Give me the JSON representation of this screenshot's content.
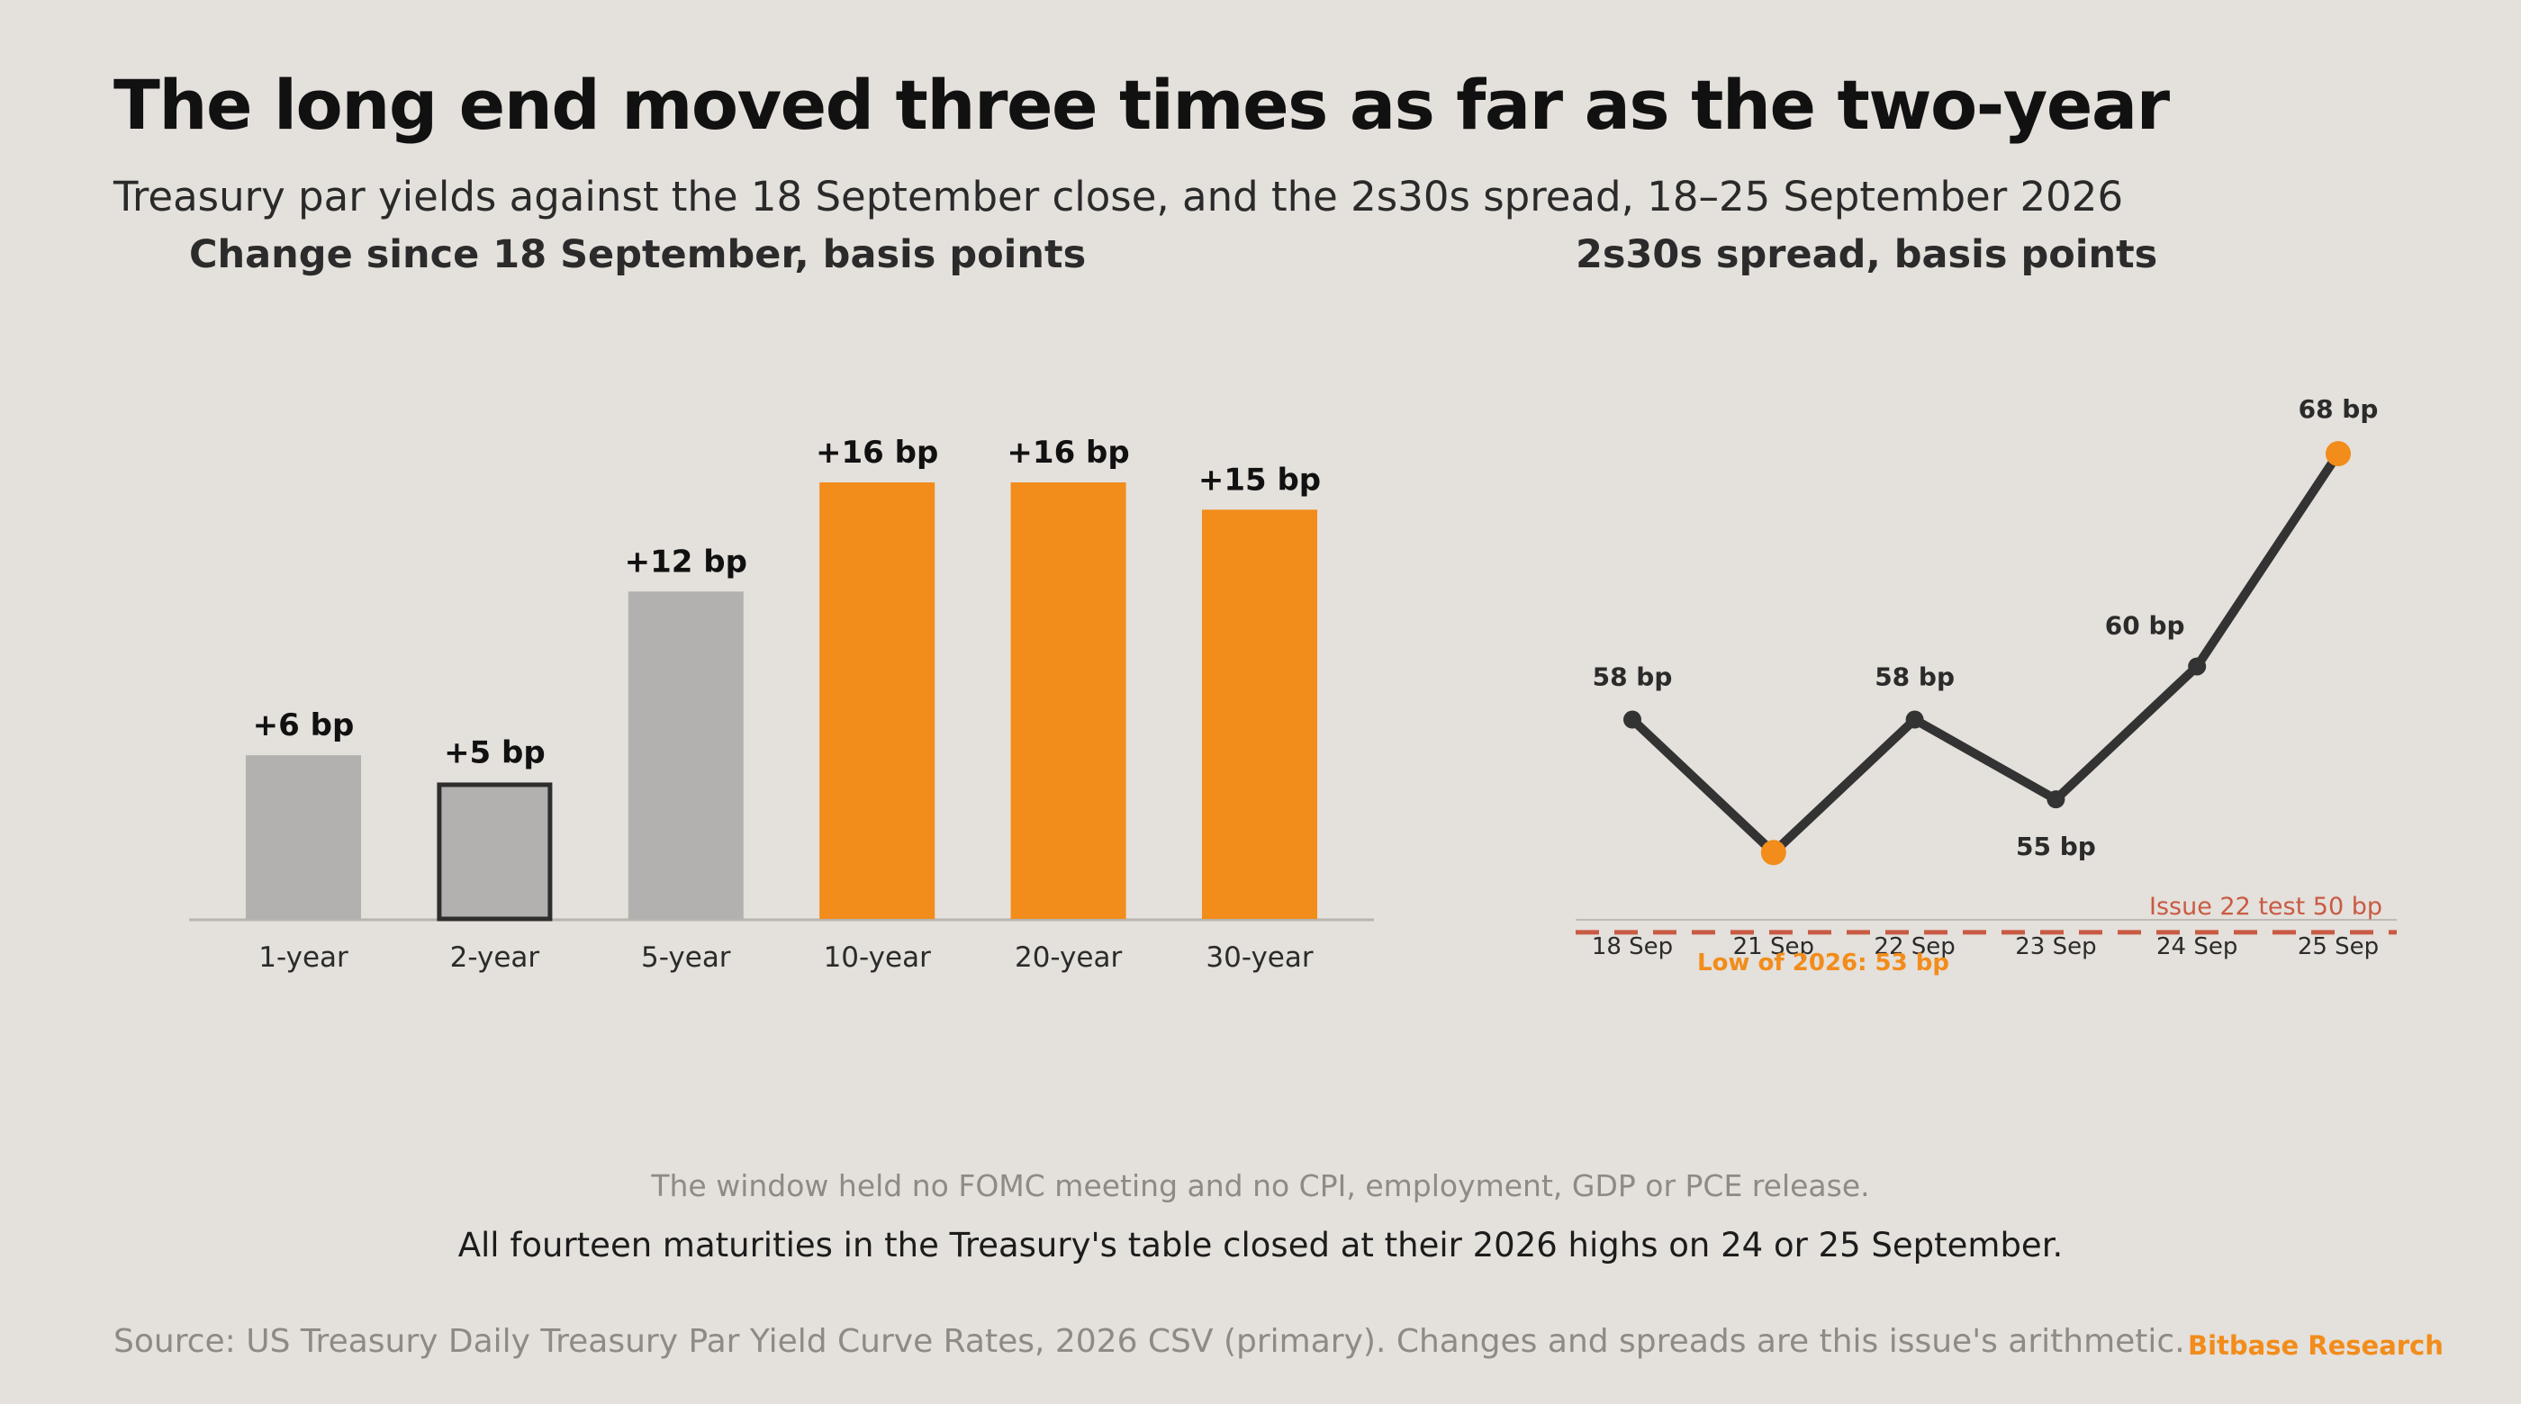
{
  "header": {
    "title": "The long end moved three times as far as the two-year",
    "subtitle": "Treasury par yields against the 18 September close, and the 2s30s spread, 18–25 September 2026"
  },
  "colors": {
    "background": "#e4e0db",
    "grey_bar": "#b2b1b0",
    "orange": "#f28c1a",
    "line": "#333333",
    "threshold": "#c95a44",
    "muted_text": "#8e8a85"
  },
  "chart_data": [
    {
      "type": "bar",
      "title": "Change since 18 September, basis points",
      "categories": [
        "1-year",
        "2-year",
        "5-year",
        "10-year",
        "20-year",
        "30-year"
      ],
      "values": [
        6,
        5,
        12,
        16,
        16,
        15
      ],
      "data_labels": [
        "+6 bp",
        "+5 bp",
        "+12 bp",
        "+16 bp",
        "+16 bp",
        "+15 bp"
      ],
      "bar_colors": [
        "#b2b1b0",
        "#b2b1b0",
        "#b2b1b0",
        "#f28c1a",
        "#f28c1a",
        "#f28c1a"
      ],
      "highlighted_outline": [
        "2-year"
      ],
      "ylim": [
        0,
        16
      ],
      "grid": false
    },
    {
      "type": "line",
      "title": "2s30s spread, basis points",
      "x": [
        "18 Sep",
        "21 Sep",
        "22 Sep",
        "23 Sep",
        "24 Sep",
        "25 Sep"
      ],
      "values": [
        58,
        53,
        58,
        55,
        60,
        68
      ],
      "data_labels": [
        "58 bp",
        "",
        "58 bp",
        "55 bp",
        "60 bp",
        "68 bp"
      ],
      "highlighted_points": [
        "21 Sep",
        "25 Sep"
      ],
      "reference_line": {
        "value": 50,
        "label": "Issue 22 test 50 bp"
      },
      "annotation": "Low of 2026: 53 bp",
      "ylim": [
        48,
        70
      ],
      "grid": false
    }
  ],
  "notes": {
    "context": "The window held no FOMC meeting and no CPI, employment, GDP or PCE release.",
    "finding": "All fourteen maturities in the Treasury's table closed at their 2026 highs on 24 or 25 September."
  },
  "footer": {
    "source": "Source: US Treasury Daily Treasury Par Yield Curve Rates, 2026 CSV (primary). Changes and spreads are this issue's arithmetic.",
    "brand": "Bitbase Research"
  }
}
